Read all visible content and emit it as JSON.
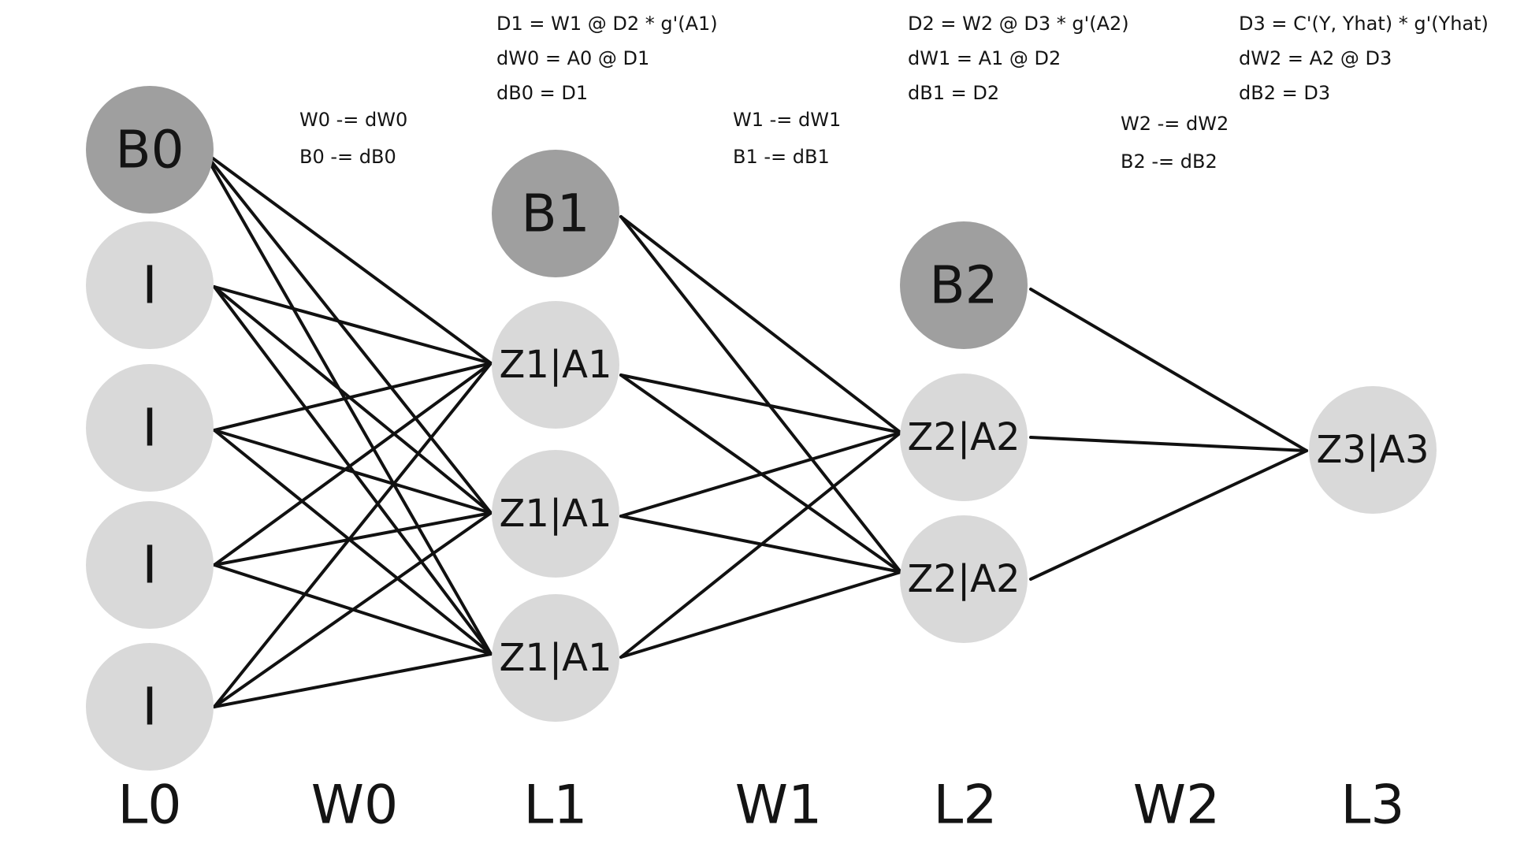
{
  "layers": [
    {
      "id": "L0",
      "label": "L0",
      "nodes": [
        {
          "text": "B0",
          "kind": "bias"
        },
        {
          "text": "I",
          "kind": "neuron"
        },
        {
          "text": "I",
          "kind": "neuron"
        },
        {
          "text": "I",
          "kind": "neuron"
        },
        {
          "text": "I",
          "kind": "neuron"
        }
      ]
    },
    {
      "id": "L1",
      "label": "L1",
      "nodes": [
        {
          "text": "B1",
          "kind": "bias"
        },
        {
          "text": "Z1|A1",
          "kind": "neuron"
        },
        {
          "text": "Z1|A1",
          "kind": "neuron"
        },
        {
          "text": "Z1|A1",
          "kind": "neuron"
        }
      ]
    },
    {
      "id": "L2",
      "label": "L2",
      "nodes": [
        {
          "text": "B2",
          "kind": "bias"
        },
        {
          "text": "Z2|A2",
          "kind": "neuron"
        },
        {
          "text": "Z2|A2",
          "kind": "neuron"
        }
      ]
    },
    {
      "id": "L3",
      "label": "L3",
      "nodes": [
        {
          "text": "Z3|A3",
          "kind": "neuron"
        }
      ]
    }
  ],
  "weights": [
    {
      "label": "W0",
      "updates": [
        "W0 -= dW0",
        "B0 -= dB0"
      ],
      "grads": [
        "D1 = W1 @ D2 * g'(A1)",
        "dW0 = A0 @ D1",
        "dB0 = D1"
      ]
    },
    {
      "label": "W1",
      "updates": [
        "W1 -= dW1",
        "B1 -= dB1"
      ],
      "grads": [
        "D2 = W2 @ D3 * g'(A2)",
        "dW1 = A1 @ D2",
        "dB1 = D2"
      ]
    },
    {
      "label": "W2",
      "updates": [
        "W2 -= dW2",
        "B2 -= dB2"
      ],
      "grads": [
        "D3 = C'(Y, Yhat) * g'(Yhat)",
        "dW2 = A2 @ D3",
        "dB2 = D3"
      ]
    }
  ],
  "colors": {
    "bias": "#9f9f9f",
    "neuron": "#d9d9d9",
    "edge": "#111111",
    "text": "#141414"
  }
}
